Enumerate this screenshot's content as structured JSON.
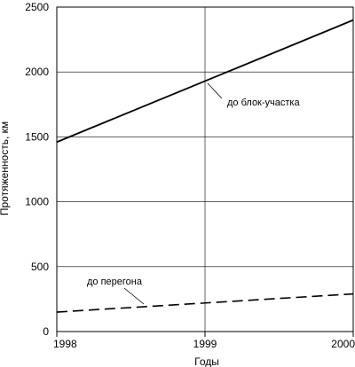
{
  "chart_data": {
    "type": "line",
    "xlabel": "Годы",
    "ylabel": "Протяженность, км",
    "xlim": [
      1998,
      2000
    ],
    "ylim": [
      0,
      2500
    ],
    "x_ticks": [
      "1998",
      "1999",
      "2000"
    ],
    "y_ticks": [
      "0",
      "500",
      "1000",
      "1500",
      "2000",
      "2500"
    ],
    "grid": true,
    "series": [
      {
        "name": "до блок-участка",
        "style": "solid",
        "x": [
          1998,
          2000
        ],
        "y": [
          1460,
          2400
        ]
      },
      {
        "name": "до перегона",
        "style": "dashed",
        "x": [
          1998,
          2000
        ],
        "y": [
          150,
          290
        ]
      }
    ]
  }
}
